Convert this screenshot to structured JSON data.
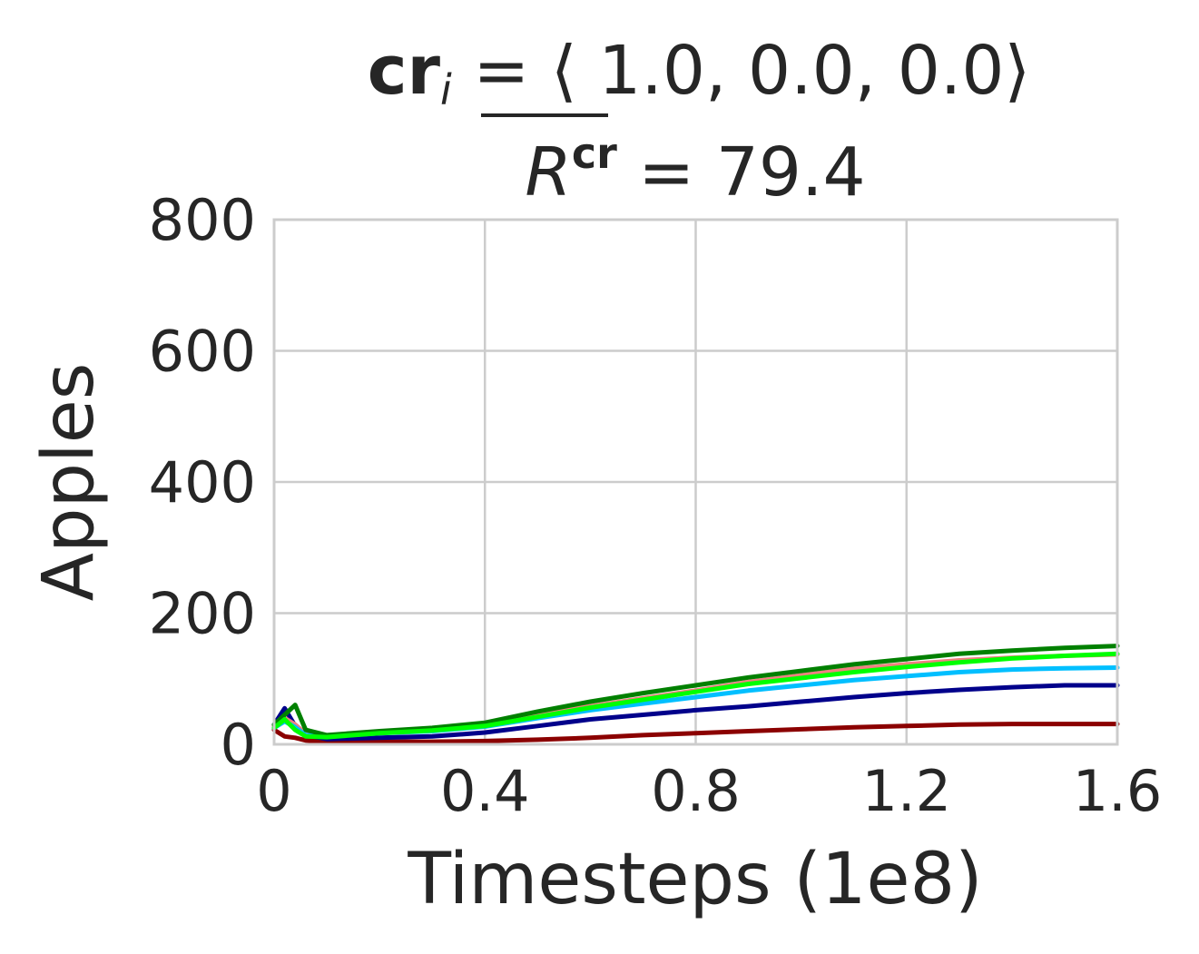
{
  "chart_data": {
    "type": "line",
    "title_line1_bold": "cr",
    "title_line1_sub": "i",
    "title_line1_rest": " = ⟨ 1.0, 0.0, 0.0⟩",
    "title_line2_var": "R",
    "title_line2_sup": "cr",
    "title_line2_rest": " = 79.4",
    "xlabel": "Timesteps (1e8)",
    "ylabel": "Apples",
    "xlim": [
      0,
      1.6
    ],
    "ylim": [
      0,
      800
    ],
    "xticks": [
      0,
      0.4,
      0.8,
      1.2,
      1.6
    ],
    "xtick_labels": [
      "0",
      "0.4",
      "0.8",
      "1.2",
      "1.6"
    ],
    "yticks": [
      0,
      200,
      400,
      600,
      800
    ],
    "ytick_labels": [
      "0",
      "200",
      "400",
      "600",
      "800"
    ],
    "grid": true,
    "legend": "none",
    "series": [
      {
        "color": "#8b0000",
        "x": [
          0,
          0.02,
          0.04,
          0.06,
          0.1,
          0.2,
          0.3,
          0.4,
          0.5,
          0.6,
          0.7,
          0.8,
          0.9,
          1.0,
          1.1,
          1.2,
          1.3,
          1.4,
          1.5,
          1.6
        ],
        "y": [
          22,
          12,
          10,
          6,
          4,
          4,
          4,
          5,
          7,
          10,
          14,
          17,
          20,
          23,
          26,
          28,
          30,
          31,
          31,
          31
        ]
      },
      {
        "color": "#00008b",
        "x": [
          0,
          0.02,
          0.04,
          0.06,
          0.1,
          0.2,
          0.3,
          0.4,
          0.5,
          0.6,
          0.7,
          0.8,
          0.9,
          1.0,
          1.1,
          1.2,
          1.3,
          1.4,
          1.5,
          1.6
        ],
        "y": [
          30,
          55,
          28,
          14,
          8,
          10,
          12,
          18,
          28,
          38,
          45,
          52,
          58,
          65,
          72,
          78,
          83,
          87,
          90,
          90
        ]
      },
      {
        "color": "#f08080",
        "x": [
          0,
          0.02,
          0.04,
          0.06,
          0.1,
          0.2,
          0.3,
          0.4,
          0.5,
          0.6,
          0.7,
          0.8,
          0.9,
          1.0,
          1.1,
          1.2,
          1.3,
          1.4,
          1.5,
          1.6
        ],
        "y": [
          28,
          40,
          30,
          16,
          12,
          18,
          22,
          30,
          45,
          58,
          70,
          82,
          95,
          105,
          115,
          122,
          128,
          132,
          135,
          137
        ]
      },
      {
        "color": "#00bfff",
        "x": [
          0,
          0.02,
          0.04,
          0.06,
          0.1,
          0.2,
          0.3,
          0.4,
          0.5,
          0.6,
          0.7,
          0.8,
          0.9,
          1.0,
          1.1,
          1.2,
          1.3,
          1.4,
          1.5,
          1.6
        ],
        "y": [
          25,
          35,
          26,
          14,
          12,
          17,
          20,
          27,
          40,
          52,
          62,
          72,
          82,
          90,
          98,
          104,
          110,
          114,
          116,
          117
        ]
      },
      {
        "color": "#008000",
        "x": [
          0,
          0.02,
          0.04,
          0.06,
          0.1,
          0.2,
          0.3,
          0.4,
          0.5,
          0.6,
          0.7,
          0.8,
          0.9,
          1.0,
          1.1,
          1.2,
          1.3,
          1.4,
          1.5,
          1.6
        ],
        "y": [
          30,
          45,
          60,
          22,
          14,
          20,
          25,
          33,
          50,
          65,
          78,
          90,
          102,
          112,
          122,
          130,
          138,
          143,
          147,
          150
        ]
      },
      {
        "color": "#00ff00",
        "x": [
          0,
          0.02,
          0.04,
          0.06,
          0.1,
          0.2,
          0.3,
          0.4,
          0.5,
          0.6,
          0.7,
          0.8,
          0.9,
          1.0,
          1.1,
          1.2,
          1.3,
          1.4,
          1.5,
          1.6
        ],
        "y": [
          25,
          38,
          22,
          12,
          11,
          17,
          21,
          28,
          42,
          56,
          68,
          80,
          92,
          101,
          110,
          118,
          125,
          131,
          135,
          138
        ]
      }
    ]
  }
}
